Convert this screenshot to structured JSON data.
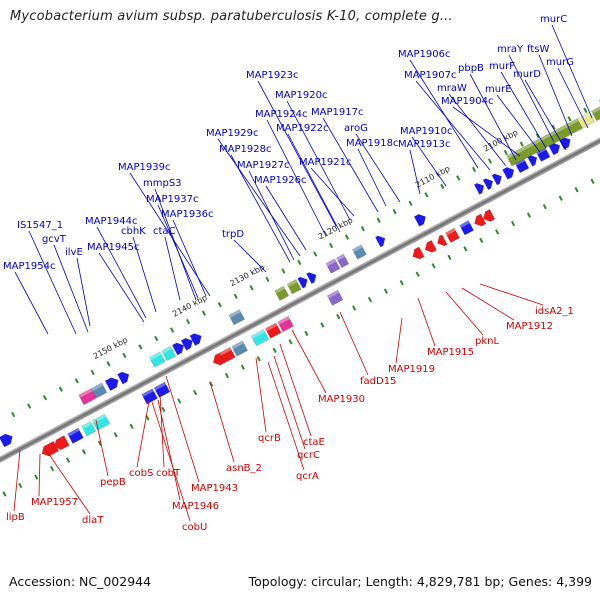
{
  "title": "Mycobacterium avium subsp. paratuberculosis K-10, complete g...",
  "footer": {
    "accession": "Accession: NC_002944",
    "summary": "Topology: circular; Length: 4,829,781 bp; Genes: 4,399"
  },
  "ticks": [
    "2100 kbp",
    "2110 kbp",
    "2120 kbp",
    "2130 kbp",
    "2140 kbp",
    "2150 kbp"
  ],
  "forward_labels": [
    "murC",
    "ftsW",
    "mraY",
    "murG",
    "murF",
    "murD",
    "MAP1906c",
    "MAP1907c",
    "pbpB",
    "mraW",
    "murE",
    "MAP1904c",
    "MAP1923c",
    "MAP1920c",
    "MAP1924c",
    "MAP1917c",
    "MAP1922c",
    "aroG",
    "MAP1918c",
    "MAP1929c",
    "MAP1910c",
    "MAP1913c",
    "MAP1928c",
    "MAP1921c",
    "MAP1927c",
    "MAP1926c",
    "MAP1939c",
    "mmpS3",
    "MAP1937c",
    "MAP1936c",
    "ctaC",
    "trpD",
    "MAP1944c",
    "cbhK",
    "IS1547_1",
    "gcvT",
    "MAP1945c",
    "ilvE",
    "MAP1954c"
  ],
  "reverse_labels": [
    "idsA2_1",
    "MAP1912",
    "pknL",
    "MAP1915",
    "MAP1919",
    "fadD15",
    "MAP1930",
    "ctaE",
    "qcrB",
    "qcrC",
    "qcrA",
    "asnB_2",
    "MAP1943",
    "cobS",
    "cobT",
    "MAP1946",
    "cobU",
    "pepB",
    "MAP1957",
    "dlaT",
    "lipB"
  ],
  "colors": {
    "forward_label": "#0000cc",
    "reverse_label": "#cc0000",
    "forward_gene": "#1a1aee",
    "reverse_gene": "#ee1a1a",
    "backbone": "#8a8a8a",
    "tick_mark": "#2a8a2a",
    "cyan": "#33e6e6",
    "magenta": "#e63399",
    "olive": "#7a9a2a",
    "steel": "#5a8ab0",
    "violet": "#8a66cc",
    "yellow": "#e6e68a"
  }
}
